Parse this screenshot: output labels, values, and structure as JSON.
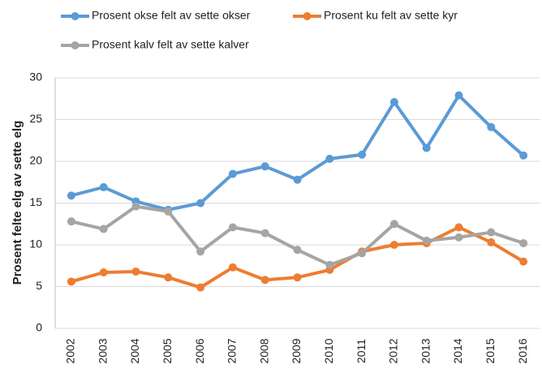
{
  "chart_data": {
    "type": "line",
    "y_label": "Prosent felte elg av sette elg",
    "categories": [
      "2002",
      "2003",
      "2004",
      "2005",
      "2006",
      "2007",
      "2008",
      "2009",
      "2010",
      "2011",
      "2012",
      "2013",
      "2014",
      "2015",
      "2016"
    ],
    "series": [
      {
        "name": "Prosent okse felt av sette okser",
        "color": "#5b9bd5",
        "values": [
          15.9,
          16.9,
          15.2,
          14.2,
          15.0,
          18.5,
          19.4,
          17.8,
          20.3,
          20.8,
          27.1,
          21.6,
          27.9,
          24.1,
          20.7
        ]
      },
      {
        "name": "Prosent ku felt av sette kyr",
        "color": "#ed7d31",
        "values": [
          5.6,
          6.7,
          6.8,
          6.1,
          4.9,
          7.3,
          5.8,
          6.1,
          7.0,
          9.2,
          10.0,
          10.2,
          12.1,
          10.3,
          8.0
        ]
      },
      {
        "name": "Prosent kalv felt av sette kalver",
        "color": "#a5a5a5",
        "values": [
          12.8,
          11.9,
          14.6,
          14.0,
          9.2,
          12.1,
          11.4,
          9.4,
          7.6,
          9.0,
          12.5,
          10.5,
          10.9,
          11.5,
          10.2
        ]
      }
    ],
    "ylim": [
      0,
      30
    ],
    "yticks": [
      0,
      5,
      10,
      15,
      20,
      25,
      30
    ],
    "grid": true,
    "legend": "top"
  }
}
